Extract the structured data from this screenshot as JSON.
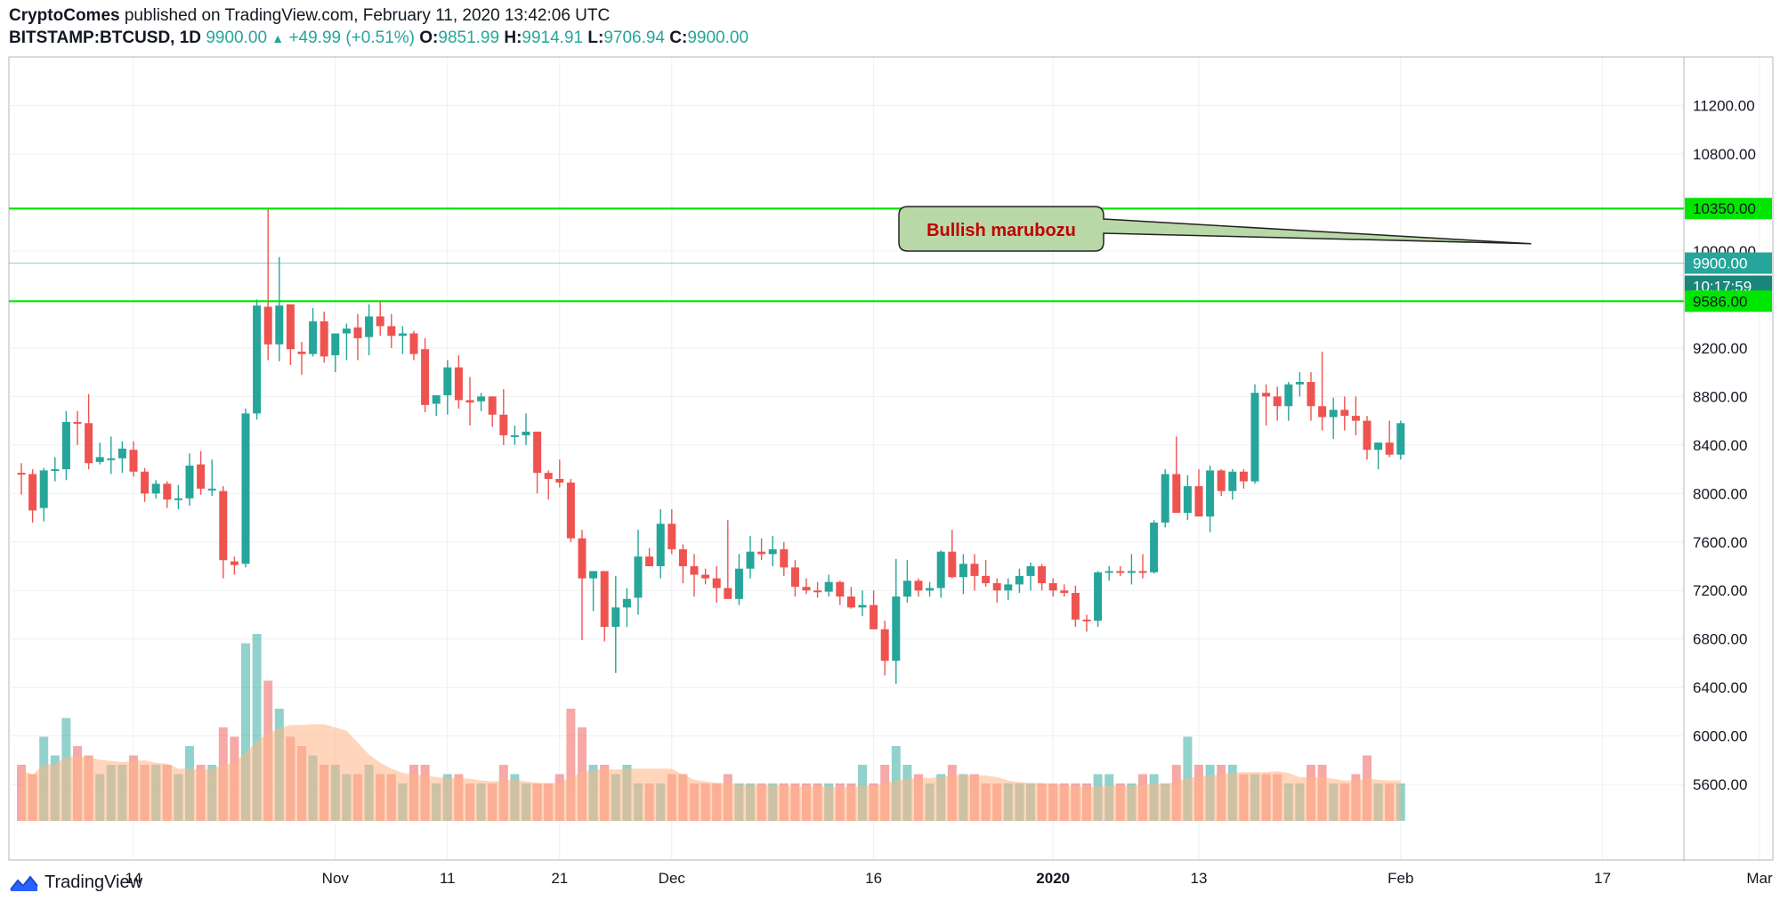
{
  "header": {
    "author": "CryptoComes",
    "published_text": "published on TradingView.com, February 11, 2020 13:42:06 UTC",
    "symbol": "BITSTAMP:BTCUSD, 1D",
    "last": "9900.00",
    "change": "+49.99 (+0.51%)",
    "o_label": "O:",
    "o_value": "9851.99",
    "h_label": "H:",
    "h_value": "9914.91",
    "l_label": "L:",
    "l_value": "9706.94",
    "c_label": "C:",
    "c_value": "9900.00"
  },
  "footer": {
    "brand": "TradingView"
  },
  "colors": {
    "up": "#26a69a",
    "down": "#ef5350",
    "level_line": "#00e600",
    "volume_ma": "#ffb485",
    "annotation_fill": "#b8d8a8",
    "annotation_text": "#c00000"
  },
  "chart_data": {
    "type": "candlestick",
    "symbol": "BITSTAMP:BTCUSD",
    "interval": "1D",
    "ylim": [
      5300,
      11600
    ],
    "y_ticks": [
      "11200.00",
      "10800.00",
      "10350.00",
      "10000.00",
      "9900.00",
      "9586.00",
      "9200.00",
      "8800.00",
      "8400.00",
      "8000.00",
      "7600.00",
      "7200.00",
      "6800.00",
      "6400.00",
      "6000.00",
      "5600.00"
    ],
    "x_tick_labels": [
      "14",
      "Nov",
      "11",
      "21",
      "Dec",
      "16",
      "2020",
      "13",
      "Feb",
      "17",
      "Mar"
    ],
    "x_tick_positions_day_index": [
      0,
      18,
      28,
      38,
      48,
      66,
      82,
      95,
      113,
      131,
      145
    ],
    "horizontal_levels": [
      10350,
      9586
    ],
    "price_badge": "9900.00",
    "countdown_badge": "10:17:59",
    "annotation": {
      "text": "Bullish marubozu",
      "points_to_day_index": 124
    },
    "first_day_index": -10,
    "candles": [
      {
        "o": 8170,
        "h": 8250,
        "l": 7990,
        "c": 8160
      },
      {
        "o": 8160,
        "h": 8200,
        "l": 7760,
        "c": 7860
      },
      {
        "o": 7880,
        "h": 8210,
        "l": 7770,
        "c": 8190
      },
      {
        "o": 8190,
        "h": 8300,
        "l": 8100,
        "c": 8200
      },
      {
        "o": 8200,
        "h": 8680,
        "l": 8110,
        "c": 8590
      },
      {
        "o": 8590,
        "h": 8680,
        "l": 8400,
        "c": 8580
      },
      {
        "o": 8580,
        "h": 8820,
        "l": 8200,
        "c": 8250
      },
      {
        "o": 8260,
        "h": 8420,
        "l": 8240,
        "c": 8300
      },
      {
        "o": 8290,
        "h": 8470,
        "l": 8160,
        "c": 8290
      },
      {
        "o": 8290,
        "h": 8430,
        "l": 8170,
        "c": 8370
      },
      {
        "o": 8360,
        "h": 8430,
        "l": 8140,
        "c": 8180
      },
      {
        "o": 8180,
        "h": 8210,
        "l": 7930,
        "c": 8000
      },
      {
        "o": 8000,
        "h": 8110,
        "l": 7960,
        "c": 8080
      },
      {
        "o": 8080,
        "h": 8100,
        "l": 7880,
        "c": 7950
      },
      {
        "o": 7950,
        "h": 8070,
        "l": 7870,
        "c": 7960
      },
      {
        "o": 7960,
        "h": 8330,
        "l": 7900,
        "c": 8230
      },
      {
        "o": 8240,
        "h": 8350,
        "l": 7990,
        "c": 8040
      },
      {
        "o": 8040,
        "h": 8280,
        "l": 7980,
        "c": 8040
      },
      {
        "o": 8020,
        "h": 8060,
        "l": 7300,
        "c": 7450
      },
      {
        "o": 7440,
        "h": 7480,
        "l": 7330,
        "c": 7410
      },
      {
        "o": 7420,
        "h": 8700,
        "l": 7390,
        "c": 8660
      },
      {
        "o": 8660,
        "h": 9600,
        "l": 8610,
        "c": 9550
      },
      {
        "o": 9540,
        "h": 10350,
        "l": 9100,
        "c": 9230
      },
      {
        "o": 9230,
        "h": 9950,
        "l": 9090,
        "c": 9550
      },
      {
        "o": 9560,
        "h": 9560,
        "l": 9060,
        "c": 9190
      },
      {
        "o": 9170,
        "h": 9250,
        "l": 8980,
        "c": 9150
      },
      {
        "o": 9150,
        "h": 9530,
        "l": 9130,
        "c": 9420
      },
      {
        "o": 9420,
        "h": 9500,
        "l": 9080,
        "c": 9130
      },
      {
        "o": 9140,
        "h": 9270,
        "l": 9000,
        "c": 9320
      },
      {
        "o": 9320,
        "h": 9400,
        "l": 9100,
        "c": 9360
      },
      {
        "o": 9370,
        "h": 9480,
        "l": 9100,
        "c": 9280
      },
      {
        "o": 9290,
        "h": 9560,
        "l": 9140,
        "c": 9460
      },
      {
        "o": 9460,
        "h": 9590,
        "l": 9300,
        "c": 9380
      },
      {
        "o": 9380,
        "h": 9480,
        "l": 9200,
        "c": 9300
      },
      {
        "o": 9300,
        "h": 9380,
        "l": 9150,
        "c": 9320
      },
      {
        "o": 9320,
        "h": 9340,
        "l": 9100,
        "c": 9150
      },
      {
        "o": 9190,
        "h": 9280,
        "l": 8670,
        "c": 8730
      },
      {
        "o": 8740,
        "h": 8810,
        "l": 8640,
        "c": 8810
      },
      {
        "o": 8810,
        "h": 9100,
        "l": 8650,
        "c": 9040
      },
      {
        "o": 9040,
        "h": 9140,
        "l": 8700,
        "c": 8770
      },
      {
        "o": 8770,
        "h": 8960,
        "l": 8560,
        "c": 8750
      },
      {
        "o": 8760,
        "h": 8830,
        "l": 8680,
        "c": 8800
      },
      {
        "o": 8800,
        "h": 8800,
        "l": 8550,
        "c": 8650
      },
      {
        "o": 8650,
        "h": 8860,
        "l": 8400,
        "c": 8480
      },
      {
        "o": 8480,
        "h": 8560,
        "l": 8400,
        "c": 8480
      },
      {
        "o": 8480,
        "h": 8660,
        "l": 8400,
        "c": 8510
      },
      {
        "o": 8510,
        "h": 8510,
        "l": 8000,
        "c": 8170
      },
      {
        "o": 8170,
        "h": 8190,
        "l": 7950,
        "c": 8120
      },
      {
        "o": 8120,
        "h": 8280,
        "l": 8050,
        "c": 8090
      },
      {
        "o": 8090,
        "h": 8120,
        "l": 7600,
        "c": 7630
      },
      {
        "o": 7630,
        "h": 7700,
        "l": 6790,
        "c": 7300
      },
      {
        "o": 7300,
        "h": 7330,
        "l": 7030,
        "c": 7360
      },
      {
        "o": 7360,
        "h": 7360,
        "l": 6780,
        "c": 6900
      },
      {
        "o": 6900,
        "h": 7320,
        "l": 6520,
        "c": 7060
      },
      {
        "o": 7060,
        "h": 7220,
        "l": 6900,
        "c": 7130
      },
      {
        "o": 7140,
        "h": 7700,
        "l": 7000,
        "c": 7480
      },
      {
        "o": 7480,
        "h": 7550,
        "l": 7400,
        "c": 7400
      },
      {
        "o": 7400,
        "h": 7870,
        "l": 7300,
        "c": 7750
      },
      {
        "o": 7750,
        "h": 7870,
        "l": 7500,
        "c": 7540
      },
      {
        "o": 7540,
        "h": 7580,
        "l": 7260,
        "c": 7400
      },
      {
        "o": 7400,
        "h": 7500,
        "l": 7150,
        "c": 7330
      },
      {
        "o": 7330,
        "h": 7380,
        "l": 7250,
        "c": 7300
      },
      {
        "o": 7300,
        "h": 7400,
        "l": 7100,
        "c": 7220
      },
      {
        "o": 7220,
        "h": 7780,
        "l": 7150,
        "c": 7130
      },
      {
        "o": 7130,
        "h": 7500,
        "l": 7080,
        "c": 7380
      },
      {
        "o": 7380,
        "h": 7650,
        "l": 7300,
        "c": 7520
      },
      {
        "o": 7520,
        "h": 7630,
        "l": 7450,
        "c": 7500
      },
      {
        "o": 7500,
        "h": 7650,
        "l": 7400,
        "c": 7540
      },
      {
        "o": 7540,
        "h": 7600,
        "l": 7320,
        "c": 7390
      },
      {
        "o": 7390,
        "h": 7450,
        "l": 7150,
        "c": 7230
      },
      {
        "o": 7230,
        "h": 7300,
        "l": 7170,
        "c": 7200
      },
      {
        "o": 7200,
        "h": 7270,
        "l": 7140,
        "c": 7190
      },
      {
        "o": 7190,
        "h": 7330,
        "l": 7150,
        "c": 7270
      },
      {
        "o": 7270,
        "h": 7280,
        "l": 7080,
        "c": 7150
      },
      {
        "o": 7150,
        "h": 7230,
        "l": 7050,
        "c": 7060
      },
      {
        "o": 7060,
        "h": 7200,
        "l": 6990,
        "c": 7080
      },
      {
        "o": 7080,
        "h": 7200,
        "l": 6900,
        "c": 6880
      },
      {
        "o": 6880,
        "h": 6950,
        "l": 6500,
        "c": 6620
      },
      {
        "o": 6620,
        "h": 7460,
        "l": 6430,
        "c": 7150
      },
      {
        "o": 7150,
        "h": 7450,
        "l": 7100,
        "c": 7280
      },
      {
        "o": 7280,
        "h": 7300,
        "l": 7150,
        "c": 7200
      },
      {
        "o": 7200,
        "h": 7270,
        "l": 7150,
        "c": 7220
      },
      {
        "o": 7220,
        "h": 7530,
        "l": 7140,
        "c": 7520
      },
      {
        "o": 7520,
        "h": 7700,
        "l": 7300,
        "c": 7310
      },
      {
        "o": 7310,
        "h": 7500,
        "l": 7170,
        "c": 7420
      },
      {
        "o": 7420,
        "h": 7500,
        "l": 7200,
        "c": 7320
      },
      {
        "o": 7320,
        "h": 7450,
        "l": 7230,
        "c": 7260
      },
      {
        "o": 7260,
        "h": 7300,
        "l": 7100,
        "c": 7200
      },
      {
        "o": 7200,
        "h": 7300,
        "l": 7120,
        "c": 7250
      },
      {
        "o": 7250,
        "h": 7380,
        "l": 7180,
        "c": 7320
      },
      {
        "o": 7320,
        "h": 7430,
        "l": 7200,
        "c": 7400
      },
      {
        "o": 7400,
        "h": 7420,
        "l": 7200,
        "c": 7260
      },
      {
        "o": 7260,
        "h": 7300,
        "l": 7150,
        "c": 7200
      },
      {
        "o": 7200,
        "h": 7250,
        "l": 7150,
        "c": 7180
      },
      {
        "o": 7180,
        "h": 7240,
        "l": 6900,
        "c": 6960
      },
      {
        "o": 6960,
        "h": 7000,
        "l": 6860,
        "c": 6950
      },
      {
        "o": 6950,
        "h": 7360,
        "l": 6900,
        "c": 7350
      },
      {
        "o": 7350,
        "h": 7400,
        "l": 7280,
        "c": 7360
      },
      {
        "o": 7360,
        "h": 7400,
        "l": 7320,
        "c": 7350
      },
      {
        "o": 7350,
        "h": 7500,
        "l": 7250,
        "c": 7360
      },
      {
        "o": 7360,
        "h": 7500,
        "l": 7300,
        "c": 7350
      },
      {
        "o": 7350,
        "h": 7780,
        "l": 7340,
        "c": 7760
      },
      {
        "o": 7760,
        "h": 8200,
        "l": 7720,
        "c": 8160
      },
      {
        "o": 8160,
        "h": 8470,
        "l": 7900,
        "c": 7840
      },
      {
        "o": 7840,
        "h": 8150,
        "l": 7780,
        "c": 8060
      },
      {
        "o": 8060,
        "h": 8200,
        "l": 7850,
        "c": 7810
      },
      {
        "o": 7810,
        "h": 8230,
        "l": 7680,
        "c": 8190
      },
      {
        "o": 8190,
        "h": 8200,
        "l": 7980,
        "c": 8020
      },
      {
        "o": 8020,
        "h": 8200,
        "l": 7950,
        "c": 8180
      },
      {
        "o": 8180,
        "h": 8200,
        "l": 8040,
        "c": 8100
      },
      {
        "o": 8100,
        "h": 8900,
        "l": 8080,
        "c": 8830
      },
      {
        "o": 8830,
        "h": 8900,
        "l": 8560,
        "c": 8800
      },
      {
        "o": 8800,
        "h": 8880,
        "l": 8600,
        "c": 8720
      },
      {
        "o": 8720,
        "h": 8920,
        "l": 8600,
        "c": 8900
      },
      {
        "o": 8900,
        "h": 9000,
        "l": 8800,
        "c": 8920
      },
      {
        "o": 8920,
        "h": 9000,
        "l": 8600,
        "c": 8720
      },
      {
        "o": 8720,
        "h": 9170,
        "l": 8520,
        "c": 8630
      },
      {
        "o": 8630,
        "h": 8790,
        "l": 8450,
        "c": 8690
      },
      {
        "o": 8690,
        "h": 8800,
        "l": 8520,
        "c": 8640
      },
      {
        "o": 8640,
        "h": 8800,
        "l": 8480,
        "c": 8600
      },
      {
        "o": 8600,
        "h": 8640,
        "l": 8280,
        "c": 8360
      },
      {
        "o": 8360,
        "h": 8400,
        "l": 8200,
        "c": 8420
      },
      {
        "o": 8420,
        "h": 8600,
        "l": 8300,
        "c": 8320
      },
      {
        "o": 8320,
        "h": 8600,
        "l": 8280,
        "c": 8580
      }
    ],
    "volumes_rel": [
      0.3,
      0.25,
      0.45,
      0.35,
      0.55,
      0.4,
      0.35,
      0.25,
      0.3,
      0.3,
      0.35,
      0.3,
      0.3,
      0.3,
      0.25,
      0.4,
      0.3,
      0.3,
      0.5,
      0.45,
      0.95,
      1.0,
      0.75,
      0.6,
      0.45,
      0.4,
      0.35,
      0.3,
      0.3,
      0.25,
      0.25,
      0.3,
      0.25,
      0.25,
      0.2,
      0.3,
      0.3,
      0.2,
      0.25,
      0.25,
      0.2,
      0.2,
      0.2,
      0.3,
      0.25,
      0.2,
      0.2,
      0.2,
      0.25,
      0.6,
      0.5,
      0.3,
      0.3,
      0.25,
      0.3,
      0.2,
      0.2,
      0.2,
      0.25,
      0.25,
      0.2,
      0.2,
      0.2,
      0.25,
      0.2,
      0.2,
      0.2,
      0.2,
      0.2,
      0.2,
      0.2,
      0.2,
      0.2,
      0.2,
      0.2,
      0.3,
      0.2,
      0.3,
      0.4,
      0.3,
      0.25,
      0.2,
      0.25,
      0.3,
      0.25,
      0.25,
      0.2,
      0.2,
      0.2,
      0.2,
      0.2,
      0.2,
      0.2,
      0.2,
      0.2,
      0.2,
      0.25,
      0.25,
      0.2,
      0.2,
      0.25,
      0.25,
      0.2,
      0.3,
      0.45,
      0.3,
      0.3,
      0.3,
      0.3,
      0.25,
      0.25,
      0.25,
      0.25,
      0.2,
      0.2,
      0.3,
      0.3,
      0.2,
      0.2,
      0.25,
      0.35,
      0.2,
      0.2,
      0.2,
      0.3
    ]
  }
}
